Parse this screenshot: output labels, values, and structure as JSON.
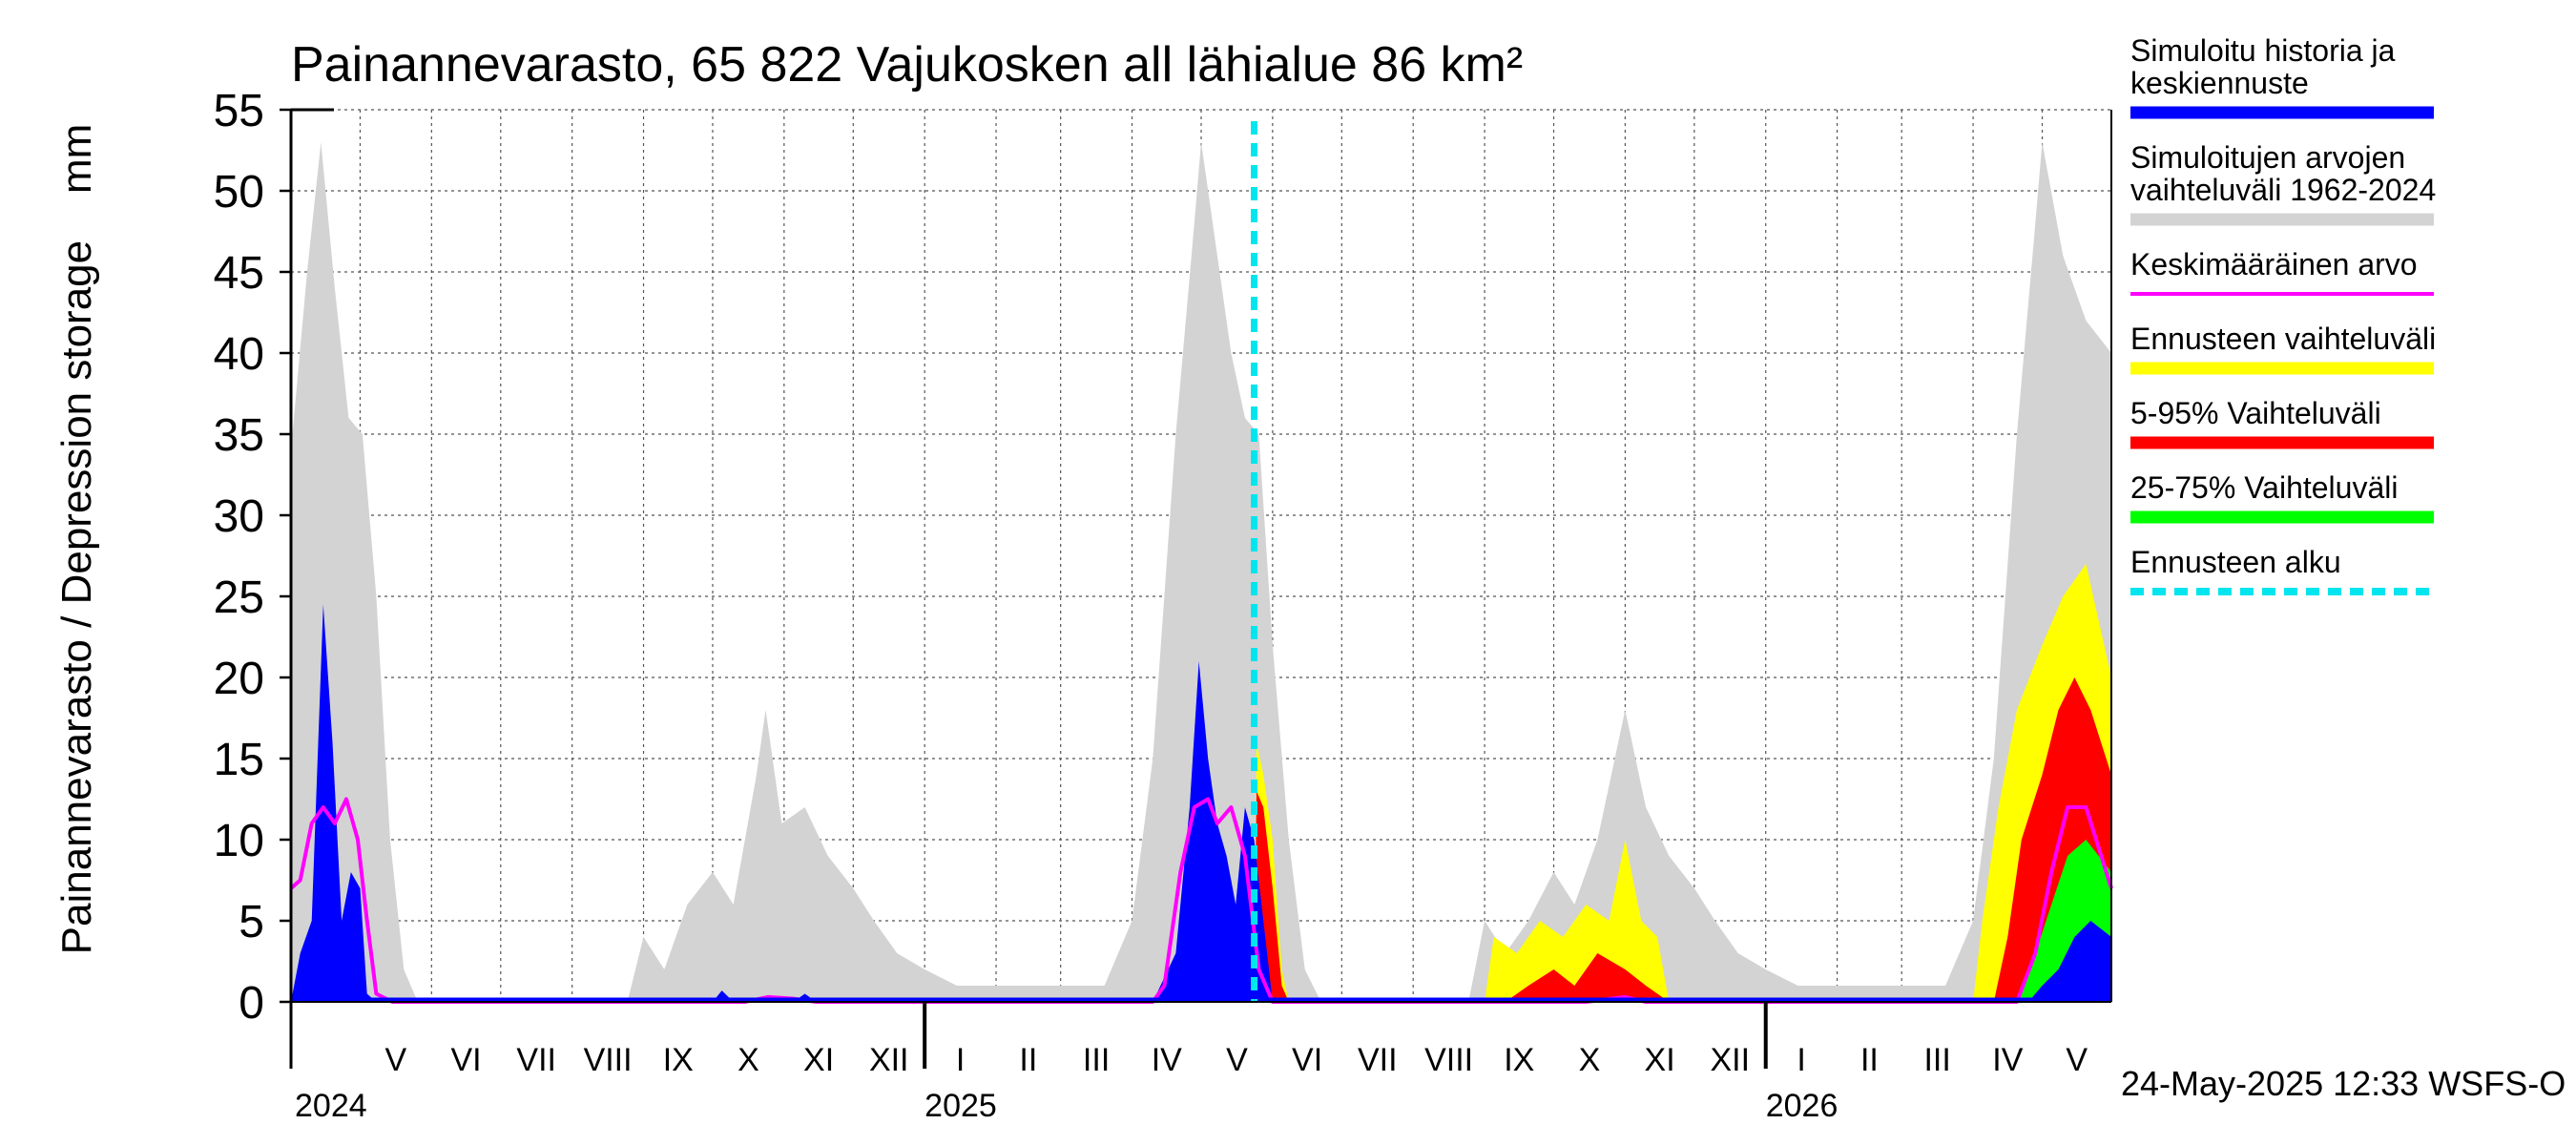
{
  "chart_data": {
    "type": "area",
    "title": "Painannevarasto, 65 822 Vajukosken all lähialue 86 km²",
    "ylabel": "Painannevarasto / Depression storage    mm",
    "ylim": [
      0,
      55
    ],
    "y_ticks": [
      "0",
      "5",
      "10",
      "15",
      "20",
      "25",
      "30",
      "35",
      "40",
      "45",
      "50",
      "55"
    ],
    "x_range": [
      "2024-04-01",
      "2026-05-31"
    ],
    "month_labels": [
      "V",
      "VI",
      "VII",
      "VIII",
      "IX",
      "X",
      "XI",
      "XII",
      "I",
      "II",
      "III",
      "IV",
      "V",
      "VI",
      "VII",
      "VIII",
      "IX",
      "X",
      "XI",
      "XII",
      "I",
      "II",
      "III",
      "IV",
      "V"
    ],
    "year_labels": [
      "2024",
      "2025",
      "2026"
    ],
    "forecast_start": "2025-05-24",
    "grid": true,
    "legend_position": "right",
    "footer": "24-May-2025 12:33 WSFS-O",
    "legend": [
      {
        "label": "Simuloitu historia ja keskiennuste",
        "color": "#0000ff",
        "style": "solid"
      },
      {
        "label": "Simuloitujen arvojen vaihteluväli 1962-2024",
        "color": "#d3d3d3",
        "style": "solid"
      },
      {
        "label": "Keskimääräinen arvo",
        "color": "#ff00ff",
        "style": "thin"
      },
      {
        "label": "Ennusteen vaihteluväli",
        "color": "#ffff00",
        "style": "solid"
      },
      {
        "label": "5-95% Vaihteluväli",
        "color": "#ff0000",
        "style": "solid"
      },
      {
        "label": "25-75% Vaihteluväli",
        "color": "#00ff00",
        "style": "solid"
      },
      {
        "label": "Ennusteen alku",
        "color": "#00e5ee",
        "style": "dashed"
      }
    ],
    "series": [
      {
        "name": "Simuloitujen arvojen vaihteluväli 1962-2024",
        "kind": "band",
        "color": "#d3d3d3",
        "points": [
          [
            "2024-04-01",
            34
          ],
          [
            "2024-04-08",
            45
          ],
          [
            "2024-04-14",
            53
          ],
          [
            "2024-04-20",
            44
          ],
          [
            "2024-04-26",
            36
          ],
          [
            "2024-05-02",
            35
          ],
          [
            "2024-05-08",
            25
          ],
          [
            "2024-05-14",
            10
          ],
          [
            "2024-05-20",
            2
          ],
          [
            "2024-05-26",
            0
          ],
          [
            "2024-08-25",
            0
          ],
          [
            "2024-09-01",
            4
          ],
          [
            "2024-09-10",
            2
          ],
          [
            "2024-09-20",
            6
          ],
          [
            "2024-10-01",
            8
          ],
          [
            "2024-10-10",
            6
          ],
          [
            "2024-10-20",
            14
          ],
          [
            "2024-10-24",
            18
          ],
          [
            "2024-10-31",
            11
          ],
          [
            "2024-11-10",
            12
          ],
          [
            "2024-11-20",
            9
          ],
          [
            "2024-12-01",
            7
          ],
          [
            "2024-12-10",
            5
          ],
          [
            "2024-12-20",
            3
          ],
          [
            "2025-01-01",
            2
          ],
          [
            "2025-01-15",
            1
          ],
          [
            "2025-02-01",
            1
          ],
          [
            "2025-02-15",
            1
          ],
          [
            "2025-03-01",
            1
          ],
          [
            "2025-03-20",
            1
          ],
          [
            "2025-04-01",
            5
          ],
          [
            "2025-04-10",
            15
          ],
          [
            "2025-04-20",
            35
          ],
          [
            "2025-04-28",
            48
          ],
          [
            "2025-05-01",
            53
          ],
          [
            "2025-05-08",
            46
          ],
          [
            "2025-05-14",
            40
          ],
          [
            "2025-05-20",
            36
          ],
          [
            "2025-05-26",
            35
          ],
          [
            "2025-06-01",
            22
          ],
          [
            "2025-06-08",
            10
          ],
          [
            "2025-06-15",
            2
          ],
          [
            "2025-06-22",
            0
          ],
          [
            "2025-08-25",
            0
          ],
          [
            "2025-09-01",
            5
          ],
          [
            "2025-09-10",
            3
          ],
          [
            "2025-09-20",
            5
          ],
          [
            "2025-10-01",
            8
          ],
          [
            "2025-10-10",
            6
          ],
          [
            "2025-10-20",
            10
          ],
          [
            "2025-11-01",
            18
          ],
          [
            "2025-11-10",
            12
          ],
          [
            "2025-11-20",
            9
          ],
          [
            "2025-12-01",
            7
          ],
          [
            "2025-12-10",
            5
          ],
          [
            "2025-12-20",
            3
          ],
          [
            "2026-01-01",
            2
          ],
          [
            "2026-01-15",
            1
          ],
          [
            "2026-02-01",
            1
          ],
          [
            "2026-03-01",
            1
          ],
          [
            "2026-03-20",
            1
          ],
          [
            "2026-04-01",
            5
          ],
          [
            "2026-04-10",
            15
          ],
          [
            "2026-04-20",
            35
          ],
          [
            "2026-04-28",
            48
          ],
          [
            "2026-05-01",
            53
          ],
          [
            "2026-05-10",
            46
          ],
          [
            "2026-05-20",
            42
          ],
          [
            "2026-05-31",
            40
          ]
        ]
      },
      {
        "name": "Ennusteen vaihteluväli",
        "kind": "band",
        "color": "#ffff00",
        "points": [
          [
            "2025-05-24",
            0
          ],
          [
            "2025-05-25",
            16
          ],
          [
            "2025-05-28",
            14
          ],
          [
            "2025-06-01",
            10
          ],
          [
            "2025-06-05",
            2
          ],
          [
            "2025-06-08",
            0
          ],
          [
            "2025-09-01",
            0
          ],
          [
            "2025-09-05",
            4
          ],
          [
            "2025-09-15",
            3
          ],
          [
            "2025-09-25",
            5
          ],
          [
            "2025-10-05",
            4
          ],
          [
            "2025-10-15",
            6
          ],
          [
            "2025-10-25",
            5
          ],
          [
            "2025-11-01",
            10
          ],
          [
            "2025-11-08",
            5
          ],
          [
            "2025-11-15",
            4
          ],
          [
            "2025-11-20",
            0
          ],
          [
            "2026-04-01",
            0
          ],
          [
            "2026-04-05",
            5
          ],
          [
            "2026-04-12",
            12
          ],
          [
            "2026-04-20",
            18
          ],
          [
            "2026-05-01",
            22
          ],
          [
            "2026-05-10",
            25
          ],
          [
            "2026-05-20",
            27
          ],
          [
            "2026-05-31",
            20
          ]
        ]
      },
      {
        "name": "5-95% Vaihteluväli",
        "kind": "band",
        "color": "#ff0000",
        "points": [
          [
            "2025-05-24",
            0
          ],
          [
            "2025-05-25",
            13
          ],
          [
            "2025-05-28",
            12
          ],
          [
            "2025-06-01",
            7
          ],
          [
            "2025-06-05",
            1
          ],
          [
            "2025-06-08",
            0
          ],
          [
            "2025-09-10",
            0
          ],
          [
            "2025-09-20",
            1
          ],
          [
            "2025-10-01",
            2
          ],
          [
            "2025-10-10",
            1
          ],
          [
            "2025-10-20",
            3
          ],
          [
            "2025-11-01",
            2
          ],
          [
            "2025-11-10",
            1
          ],
          [
            "2025-11-20",
            0
          ],
          [
            "2026-04-10",
            0
          ],
          [
            "2026-04-16",
            4
          ],
          [
            "2026-04-22",
            10
          ],
          [
            "2026-05-01",
            14
          ],
          [
            "2026-05-08",
            18
          ],
          [
            "2026-05-15",
            20
          ],
          [
            "2026-05-22",
            18
          ],
          [
            "2026-05-31",
            14
          ]
        ]
      },
      {
        "name": "25-75% Vaihteluväli",
        "kind": "band",
        "color": "#00ff00",
        "points": [
          [
            "2026-04-20",
            0
          ],
          [
            "2026-04-28",
            3
          ],
          [
            "2026-05-05",
            6
          ],
          [
            "2026-05-12",
            9
          ],
          [
            "2026-05-20",
            10
          ],
          [
            "2026-05-31",
            8
          ]
        ]
      },
      {
        "name": "Simuloitu historia ja keskiennuste",
        "kind": "band",
        "color": "#0000ff",
        "points": [
          [
            "2024-04-01",
            0
          ],
          [
            "2024-04-05",
            3
          ],
          [
            "2024-04-10",
            5
          ],
          [
            "2024-04-15",
            24.5
          ],
          [
            "2024-04-19",
            16
          ],
          [
            "2024-04-23",
            5
          ],
          [
            "2024-04-27",
            8
          ],
          [
            "2024-05-01",
            7
          ],
          [
            "2024-05-04",
            0.5
          ],
          [
            "2024-05-08",
            0
          ],
          [
            "2024-10-01",
            0
          ],
          [
            "2024-10-05",
            0.7
          ],
          [
            "2024-10-10",
            0
          ],
          [
            "2024-11-05",
            0
          ],
          [
            "2024-11-10",
            0.5
          ],
          [
            "2024-11-15",
            0
          ],
          [
            "2025-04-10",
            0
          ],
          [
            "2025-04-15",
            1.5
          ],
          [
            "2025-04-20",
            3
          ],
          [
            "2025-04-26",
            12
          ],
          [
            "2025-04-30",
            21
          ],
          [
            "2025-05-04",
            15
          ],
          [
            "2025-05-08",
            11
          ],
          [
            "2025-05-12",
            9
          ],
          [
            "2025-05-16",
            6
          ],
          [
            "2025-05-20",
            12
          ],
          [
            "2025-05-24",
            10
          ],
          [
            "2025-05-28",
            5
          ],
          [
            "2025-06-01",
            0
          ],
          [
            "2026-04-25",
            0
          ],
          [
            "2026-05-01",
            1
          ],
          [
            "2026-05-08",
            2
          ],
          [
            "2026-05-15",
            4
          ],
          [
            "2026-05-22",
            5
          ],
          [
            "2026-05-31",
            4
          ]
        ]
      },
      {
        "name": "Keskimääräinen arvo",
        "kind": "line",
        "color": "#ff00ff",
        "points": [
          [
            "2024-04-01",
            7
          ],
          [
            "2024-04-05",
            7.5
          ],
          [
            "2024-04-10",
            11
          ],
          [
            "2024-04-15",
            12
          ],
          [
            "2024-04-20",
            11
          ],
          [
            "2024-04-25",
            12.5
          ],
          [
            "2024-04-30",
            10
          ],
          [
            "2024-05-04",
            5
          ],
          [
            "2024-05-08",
            0.5
          ],
          [
            "2024-05-15",
            0
          ],
          [
            "2024-10-15",
            0
          ],
          [
            "2024-10-25",
            0.3
          ],
          [
            "2024-11-05",
            0.2
          ],
          [
            "2024-11-15",
            0
          ],
          [
            "2025-04-10",
            0
          ],
          [
            "2025-04-15",
            1
          ],
          [
            "2025-04-22",
            8
          ],
          [
            "2025-04-28",
            12
          ],
          [
            "2025-05-04",
            12.5
          ],
          [
            "2025-05-08",
            11
          ],
          [
            "2025-05-14",
            12
          ],
          [
            "2025-05-20",
            9
          ],
          [
            "2025-05-26",
            2
          ],
          [
            "2025-06-01",
            0
          ],
          [
            "2025-10-15",
            0
          ],
          [
            "2025-11-01",
            0.3
          ],
          [
            "2025-11-10",
            0
          ],
          [
            "2026-04-20",
            0
          ],
          [
            "2026-04-28",
            3
          ],
          [
            "2026-05-05",
            8
          ],
          [
            "2026-05-12",
            12
          ],
          [
            "2026-05-20",
            12
          ],
          [
            "2026-05-31",
            7
          ]
        ]
      }
    ]
  }
}
